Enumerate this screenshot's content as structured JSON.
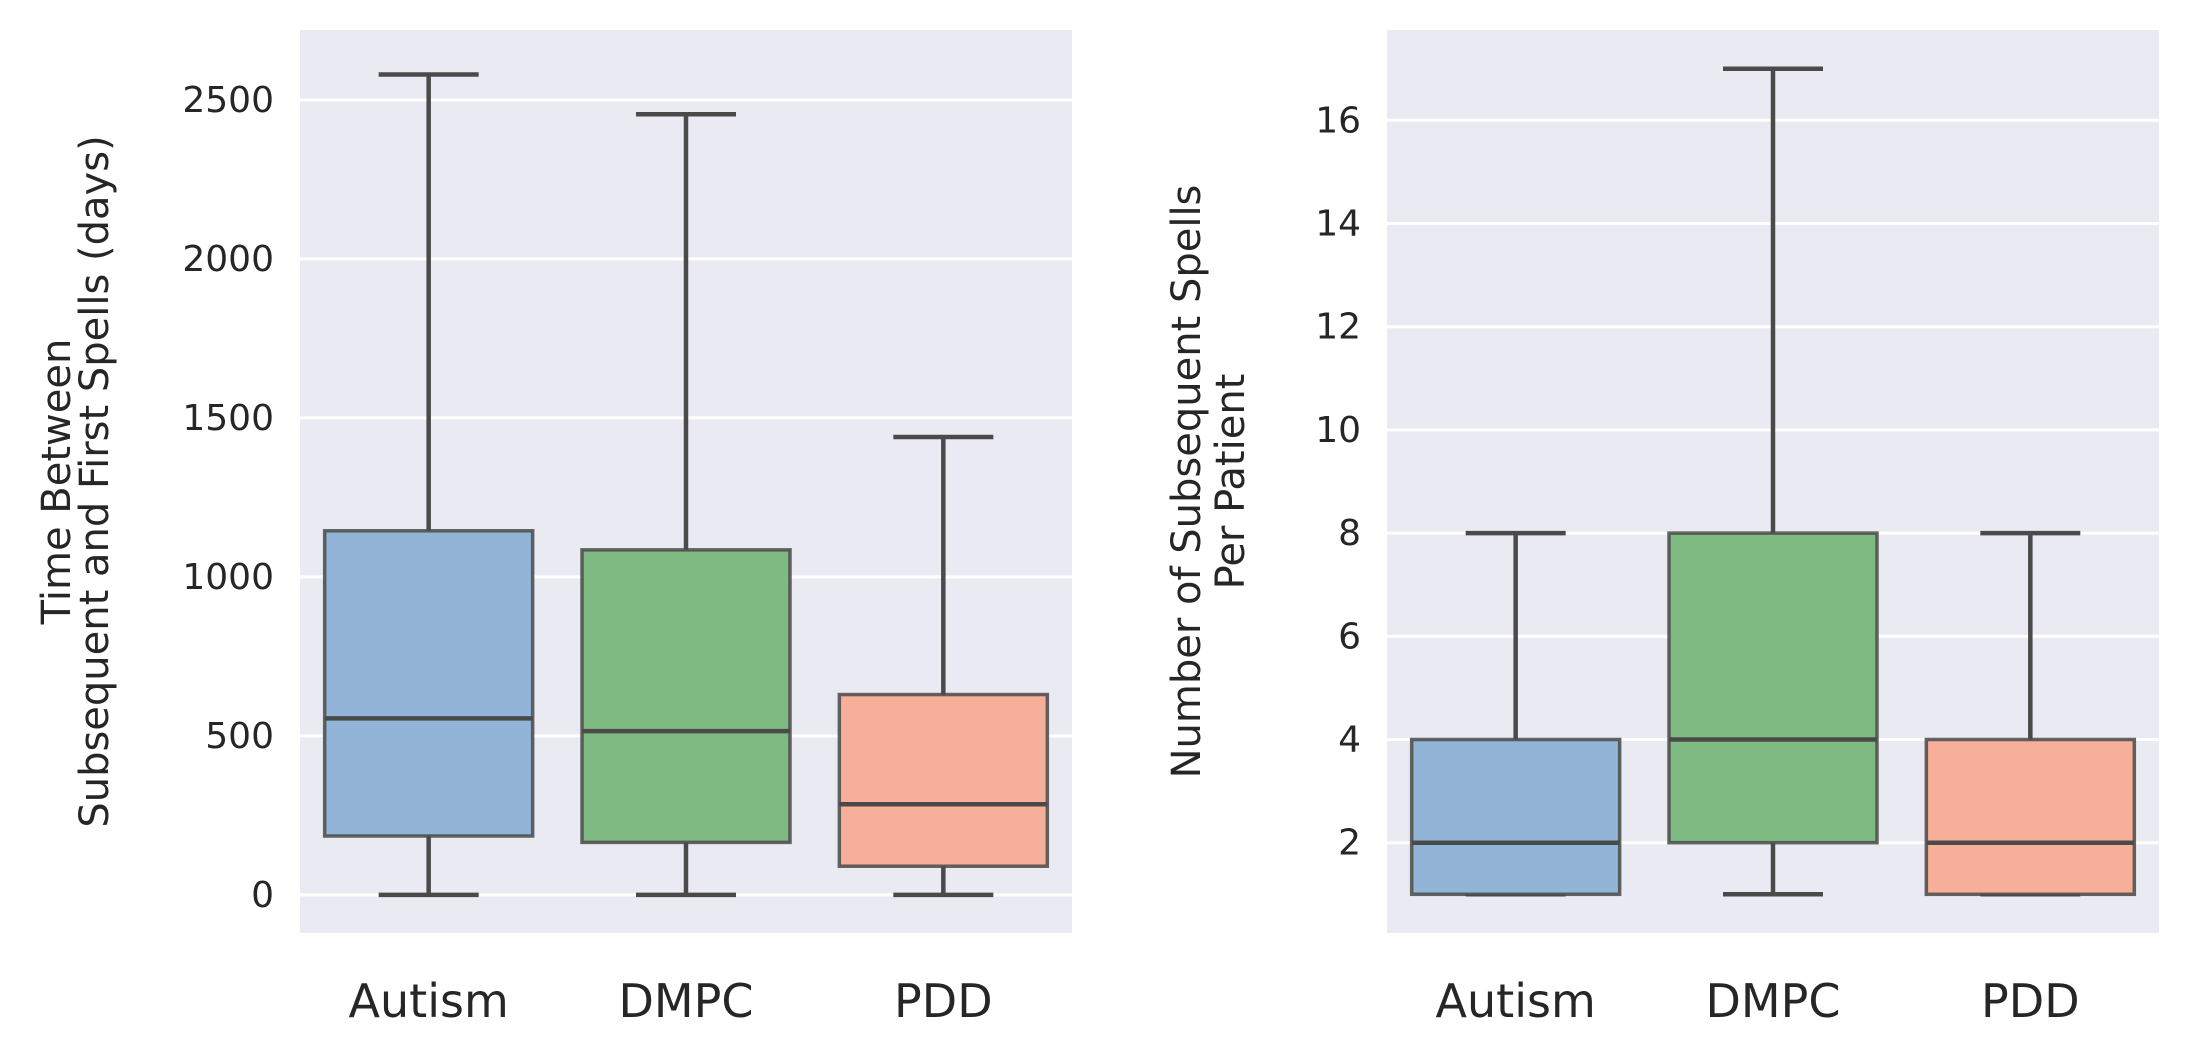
{
  "chart_data": [
    {
      "type": "box",
      "title": "",
      "xlabel": "",
      "ylabel_lines": [
        "Time Between",
        "Subsequent and First Spells (days)"
      ],
      "categories": [
        "Autism",
        "DMPC",
        "PDD"
      ],
      "yticks": [
        "0",
        "500",
        "1000",
        "1500",
        "2000",
        "2500"
      ],
      "ylim": [
        -120,
        2720
      ],
      "grid": true,
      "series": [
        {
          "category": "Autism",
          "color": "#92b4d6",
          "whisker_low": 0,
          "q1": 185,
          "median": 555,
          "q3": 1145,
          "whisker_high": 2580
        },
        {
          "category": "DMPC",
          "color": "#7fba82",
          "whisker_low": 0,
          "q1": 165,
          "median": 515,
          "q3": 1085,
          "whisker_high": 2455
        },
        {
          "category": "PDD",
          "color": "#f6b09a",
          "whisker_low": 0,
          "q1": 90,
          "median": 285,
          "q3": 630,
          "whisker_high": 1440
        }
      ]
    },
    {
      "type": "box",
      "title": "",
      "xlabel": "",
      "ylabel_lines": [
        "Number of Subsequent Spells",
        "Per Patient"
      ],
      "categories": [
        "Autism",
        "DMPC",
        "PDD"
      ],
      "yticks": [
        "2",
        "4",
        "6",
        "8",
        "10",
        "12",
        "14",
        "16"
      ],
      "ylim": [
        0.25,
        17.75
      ],
      "grid": true,
      "series": [
        {
          "category": "Autism",
          "color": "#92b4d6",
          "whisker_low": 1,
          "q1": 1,
          "median": 2,
          "q3": 4,
          "whisker_high": 8
        },
        {
          "category": "DMPC",
          "color": "#7fba82",
          "whisker_low": 1,
          "q1": 2,
          "median": 4,
          "q3": 8,
          "whisker_high": 17
        },
        {
          "category": "PDD",
          "color": "#f6b09a",
          "whisker_low": 1,
          "q1": 1,
          "median": 2,
          "q3": 4,
          "whisker_high": 8
        }
      ]
    }
  ],
  "style": {
    "panel_background": "#eaeaf2",
    "grid_color": "#ffffff",
    "box_edge_color": "#4a4a4a",
    "text_color": "#262626"
  }
}
